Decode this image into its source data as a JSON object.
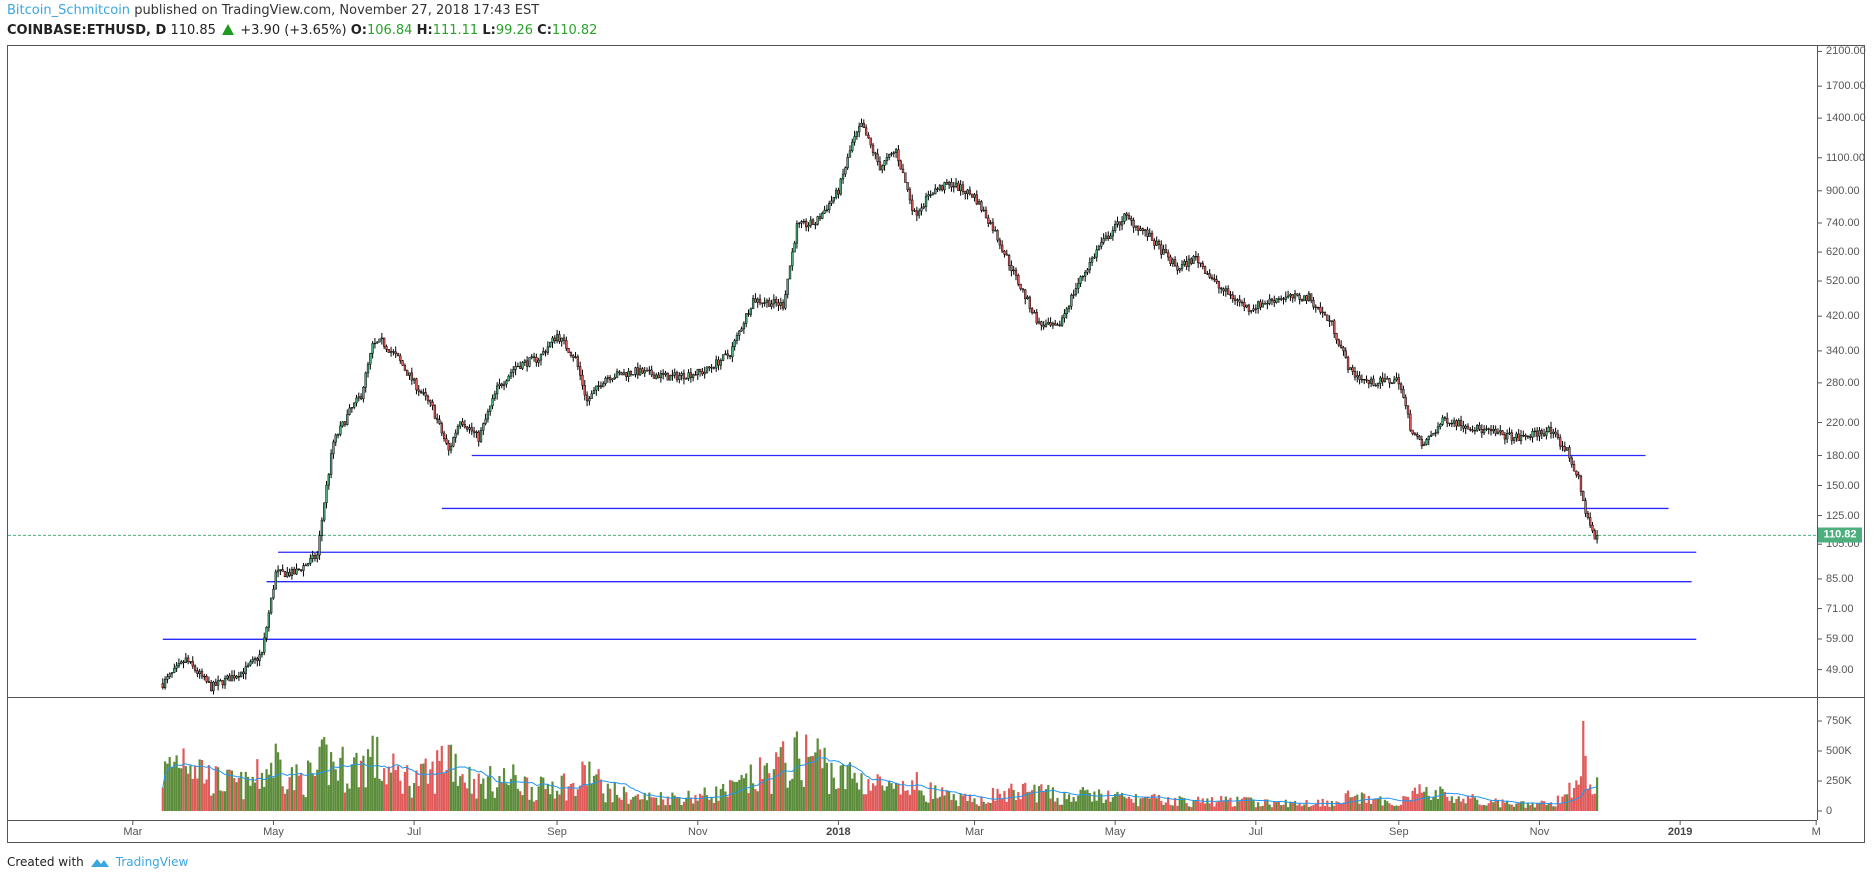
{
  "header": {
    "author": "Bitcoin_Schmitcoin",
    "published_text": "published on TradingView.com, November 27, 2018 17:43 EST",
    "symbol": "COINBASE:ETHUSD, D",
    "last": "110.85",
    "change": "+3.90 (+3.65%)",
    "open_label": "O:",
    "open": "106.84",
    "high_label": "H:",
    "high": "111.11",
    "low_label": "L:",
    "low": "99.26",
    "close_label": "C:",
    "close": "110.82"
  },
  "footer": {
    "created_with": "Created with",
    "brand": "TradingView",
    "brand_icon": "tradingview-logo-icon"
  },
  "colors": {
    "up": "#4caf7d",
    "down": "#e05a5a",
    "vol_up": "#5b8c3a",
    "vol_down": "#e05a5a",
    "vol_ma": "#2196f3",
    "support": "#2a2aff",
    "last_price": "#4caf7d"
  },
  "chart_data": {
    "type": "candlestick",
    "scale": "log",
    "ylim": [
      41,
      2200
    ],
    "price_ticks": [
      "2100.00",
      "1700.00",
      "1400.00",
      "1100.00",
      "900.00",
      "740.00",
      "620.00",
      "520.00",
      "420.00",
      "340.00",
      "280.00",
      "220.00",
      "180.00",
      "150.00",
      "125.00",
      "105.00",
      "85.00",
      "71.00",
      "59.00",
      "49.00"
    ],
    "volume_ticks": [
      {
        "label": "750K",
        "value": 750
      },
      {
        "label": "500K",
        "value": 500
      },
      {
        "label": "250K",
        "value": 250
      },
      {
        "label": "0",
        "value": 0
      }
    ],
    "time_ticks": [
      {
        "label": "Mar",
        "date": "2017-03-01"
      },
      {
        "label": "May",
        "date": "2017-05-01"
      },
      {
        "label": "Jul",
        "date": "2017-07-01"
      },
      {
        "label": "Sep",
        "date": "2017-09-01"
      },
      {
        "label": "Nov",
        "date": "2017-11-01"
      },
      {
        "label": "2018",
        "date": "2018-01-01",
        "year": true
      },
      {
        "label": "Mar",
        "date": "2018-03-01"
      },
      {
        "label": "May",
        "date": "2018-05-01"
      },
      {
        "label": "Jul",
        "date": "2018-07-01"
      },
      {
        "label": "Sep",
        "date": "2018-09-01"
      },
      {
        "label": "Nov",
        "date": "2018-11-01"
      },
      {
        "label": "2019",
        "date": "2019-01-01",
        "year": true
      },
      {
        "label": "M",
        "date": "2019-03-01"
      }
    ],
    "last_price": "110.82",
    "close_approx": [
      [
        "2017-03-14",
        45,
        350
      ],
      [
        "2017-03-24",
        52,
        600
      ],
      [
        "2017-04-04",
        44,
        300
      ],
      [
        "2017-04-19",
        49,
        250
      ],
      [
        "2017-04-26",
        54,
        350
      ],
      [
        "2017-05-02",
        88,
        500
      ],
      [
        "2017-05-10",
        88,
        300
      ],
      [
        "2017-05-20",
        98,
        350
      ],
      [
        "2017-05-23",
        136,
        500
      ],
      [
        "2017-05-27",
        195,
        450
      ],
      [
        "2017-06-03",
        235,
        400
      ],
      [
        "2017-06-08",
        260,
        450
      ],
      [
        "2017-06-13",
        350,
        550
      ],
      [
        "2017-06-17",
        360,
        400
      ],
      [
        "2017-06-24",
        325,
        350
      ],
      [
        "2017-07-01",
        280,
        300
      ],
      [
        "2017-07-09",
        240,
        350
      ],
      [
        "2017-07-16",
        185,
        600
      ],
      [
        "2017-07-21",
        225,
        400
      ],
      [
        "2017-07-29",
        200,
        250
      ],
      [
        "2017-08-06",
        270,
        300
      ],
      [
        "2017-08-14",
        310,
        300
      ],
      [
        "2017-08-24",
        325,
        200
      ],
      [
        "2017-09-01",
        375,
        300
      ],
      [
        "2017-09-09",
        325,
        200
      ],
      [
        "2017-09-14",
        250,
        400
      ],
      [
        "2017-09-22",
        290,
        200
      ],
      [
        "2017-10-05",
        300,
        130
      ],
      [
        "2017-10-20",
        290,
        130
      ],
      [
        "2017-11-04",
        300,
        150
      ],
      [
        "2017-11-15",
        335,
        200
      ],
      [
        "2017-11-25",
        465,
        300
      ],
      [
        "2017-12-08",
        450,
        450
      ],
      [
        "2017-12-14",
        725,
        500
      ],
      [
        "2017-12-22",
        740,
        550
      ],
      [
        "2018-01-01",
        900,
        300
      ],
      [
        "2018-01-07",
        1200,
        350
      ],
      [
        "2018-01-11",
        1340,
        300
      ],
      [
        "2018-01-19",
        1040,
        250
      ],
      [
        "2018-01-26",
        1150,
        180
      ],
      [
        "2018-02-03",
        780,
        250
      ],
      [
        "2018-02-11",
        900,
        180
      ],
      [
        "2018-02-19",
        940,
        120
      ],
      [
        "2018-03-01",
        870,
        100
      ],
      [
        "2018-03-09",
        720,
        150
      ],
      [
        "2018-03-19",
        530,
        180
      ],
      [
        "2018-03-29",
        400,
        200
      ],
      [
        "2018-04-06",
        390,
        130
      ],
      [
        "2018-04-14",
        500,
        150
      ],
      [
        "2018-04-24",
        640,
        150
      ],
      [
        "2018-05-05",
        770,
        120
      ],
      [
        "2018-05-15",
        690,
        110
      ],
      [
        "2018-05-28",
        560,
        100
      ],
      [
        "2018-06-05",
        600,
        90
      ],
      [
        "2018-06-15",
        500,
        100
      ],
      [
        "2018-06-28",
        440,
        90
      ],
      [
        "2018-07-11",
        470,
        70
      ],
      [
        "2018-07-24",
        470,
        80
      ],
      [
        "2018-08-03",
        400,
        90
      ],
      [
        "2018-08-11",
        300,
        150
      ],
      [
        "2018-08-19",
        280,
        100
      ],
      [
        "2018-09-01",
        285,
        80
      ],
      [
        "2018-09-06",
        215,
        200
      ],
      [
        "2018-09-11",
        190,
        180
      ],
      [
        "2018-09-21",
        225,
        150
      ],
      [
        "2018-10-07",
        210,
        90
      ],
      [
        "2018-10-23",
        200,
        60
      ],
      [
        "2018-11-05",
        210,
        70
      ],
      [
        "2018-11-13",
        185,
        150
      ],
      [
        "2018-11-18",
        155,
        400
      ],
      [
        "2018-11-20",
        135,
        600
      ],
      [
        "2018-11-23",
        118,
        300
      ],
      [
        "2018-11-25",
        108,
        350
      ],
      [
        "2018-11-27",
        110.82,
        250
      ]
    ],
    "support_lines": [
      {
        "price": 180,
        "from": "2017-07-26",
        "to": "2018-12-17"
      },
      {
        "price": 130.5,
        "from": "2017-07-13",
        "to": "2018-12-27"
      },
      {
        "price": 100,
        "from": "2017-05-03",
        "to": "2019-01-08"
      },
      {
        "price": 83.6,
        "from": "2017-04-28",
        "to": "2019-01-06"
      },
      {
        "price": 58.9,
        "from": "2017-03-14",
        "to": "2019-01-08"
      }
    ]
  }
}
